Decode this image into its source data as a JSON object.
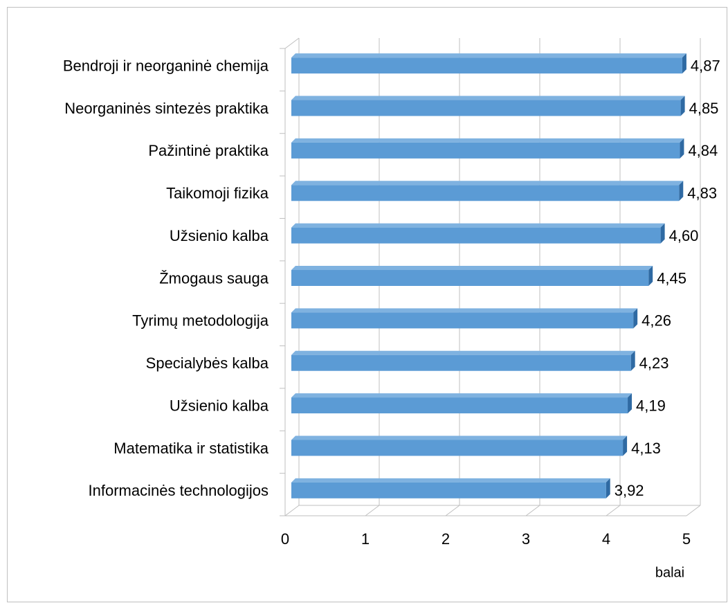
{
  "chart_data": {
    "type": "bar",
    "orientation": "horizontal",
    "three_d": true,
    "x_label": "balai",
    "categories": [
      "Bendroji ir neorganinė chemija",
      "Neorganinės sintezės praktika",
      "Pažintinė praktika",
      "Taikomoji fizika",
      "Užsienio kalba",
      "Žmogaus sauga",
      "Tyrimų metodologija",
      "Specialybės kalba",
      "Užsienio kalba",
      "Matematika ir statistika",
      "Informacinės technologijos"
    ],
    "values": [
      4.87,
      4.85,
      4.84,
      4.83,
      4.6,
      4.45,
      4.26,
      4.23,
      4.19,
      4.13,
      3.92
    ],
    "value_labels": [
      "4,87",
      "4,85",
      "4,84",
      "4,83",
      "4,60",
      "4,45",
      "4,26",
      "4,23",
      "4,19",
      "4,13",
      "3,92"
    ],
    "color": "#5b9bd5",
    "xlim": [
      0,
      5
    ],
    "xticks": [
      0,
      1,
      2,
      3,
      4,
      5
    ],
    "grid": true
  }
}
